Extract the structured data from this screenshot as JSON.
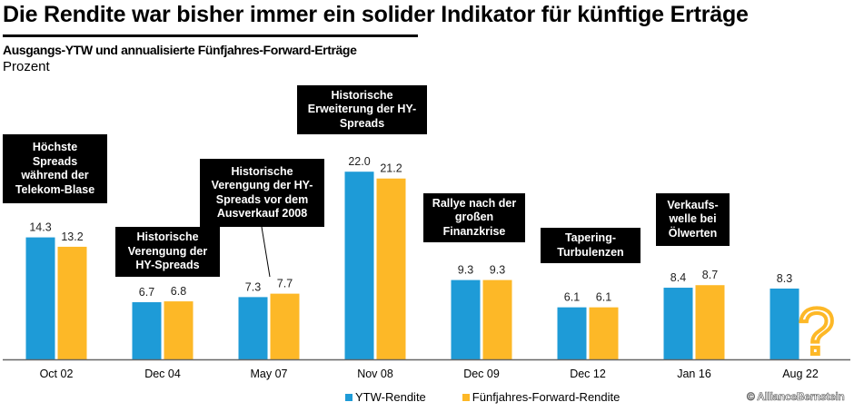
{
  "header": {
    "title": "Die Rendite war bisher immer ein solider Indikator für künftige Erträge",
    "subtitle": "Ausgangs-YTW und annualisierte Fünfjahres-Forward-Erträge",
    "unit": "Prozent"
  },
  "chart_data": {
    "type": "bar",
    "title": "Ausgangs-YTW und annualisierte Fünfjahres-Forward-Erträge",
    "ylabel": "Prozent",
    "xlabel": "",
    "ylim": [
      0,
      22
    ],
    "grid": false,
    "legend_position": "bottom",
    "categories": [
      "Oct 02",
      "Dec 04",
      "May 07",
      "Nov 08",
      "Dec 09",
      "Dec 12",
      "Jan 16",
      "Aug 22"
    ],
    "series": [
      {
        "name": "YTW-Rendite",
        "color": "#1E9BD7",
        "values": [
          14.3,
          6.7,
          7.3,
          22.0,
          9.3,
          6.1,
          8.4,
          8.3
        ],
        "labels": [
          "14.3",
          "6.7",
          "7.3",
          "22.0",
          "9.3",
          "6.1",
          "8.4",
          "8.3"
        ]
      },
      {
        "name": "Fünfjahres-Forward-Rendite",
        "color": "#FDB827",
        "values": [
          13.2,
          6.8,
          7.7,
          21.2,
          9.3,
          6.1,
          8.7,
          null
        ],
        "labels": [
          "13.2",
          "6.8",
          "7.7",
          "21.2",
          "9.3",
          "6.1",
          "8.7",
          ""
        ]
      }
    ],
    "unknown_marker": "?",
    "annotations": [
      "Höchste\nSpreads\nwährend der\nTelekom-Blase",
      "Historische\nVerengung der\nHY-Spreads",
      "Historische\nVerengung der HY-\nSpreads vor dem\nAusverkauf 2008",
      "Historische\nErweiterung der HY-\nSpreads",
      "Rallye nach der\ngroßen\nFinanzkrise",
      "Tapering-\nTurbulenzen",
      "Verkaufs-\nwelle bei\nÖlwerten"
    ]
  },
  "footer": {
    "watermark": "© AllianceBernstein"
  }
}
